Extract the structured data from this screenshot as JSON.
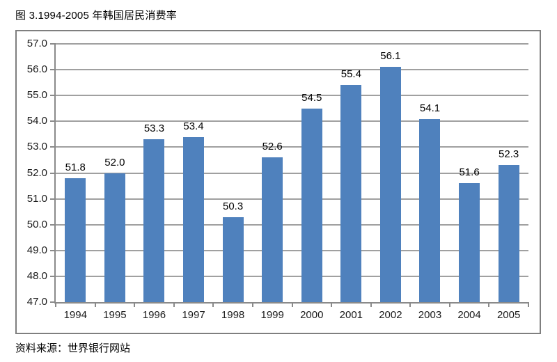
{
  "figure": {
    "title": "图 3.1994-2005 年韩国居民消费率",
    "source": "资料来源：世界银行网站"
  },
  "colors": {
    "bar": "#4f81bd",
    "gridline": "#a0a0a0",
    "axis": "#8a8a8a",
    "frame_border": "#7f7f7f",
    "text": "#000000"
  },
  "chart_data": {
    "type": "bar",
    "title": "图 3.1994-2005 年韩国居民消费率",
    "categories": [
      "1994",
      "1995",
      "1996",
      "1997",
      "1998",
      "1999",
      "2000",
      "2001",
      "2002",
      "2003",
      "2004",
      "2005"
    ],
    "values": [
      51.8,
      52.0,
      53.3,
      53.4,
      50.3,
      52.6,
      54.5,
      55.4,
      56.1,
      54.1,
      51.6,
      52.3
    ],
    "data_labels": [
      "51.8",
      "52.0",
      "53.3",
      "53.4",
      "50.3",
      "52.6",
      "54.5",
      "55.4",
      "56.1",
      "54.1",
      "51.6",
      "52.3"
    ],
    "xlabel": "",
    "ylabel": "",
    "ylim": [
      47.0,
      57.0
    ],
    "ytick_step": 1.0,
    "ytick_labels": [
      "57.0",
      "56.0",
      "55.0",
      "54.0",
      "53.0",
      "52.0",
      "51.0",
      "50.0",
      "49.0",
      "48.0",
      "47.0"
    ],
    "grid": true,
    "legend": "none",
    "source": "资料来源：世界银行网站"
  }
}
